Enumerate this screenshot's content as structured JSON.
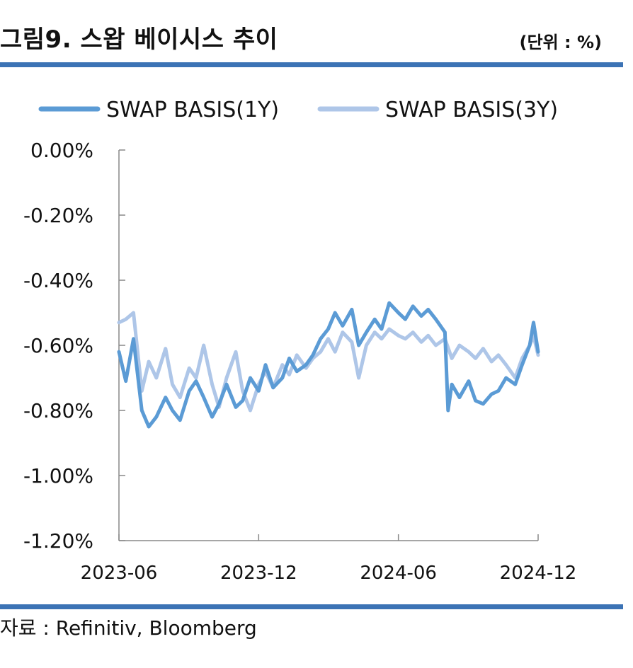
{
  "header": {
    "title": "그림9. 스왑 베이시스 추이",
    "unit": "(단위 : %)"
  },
  "footer": {
    "source": "자료 : Refinitiv, Bloomberg"
  },
  "chart_data": {
    "type": "line",
    "title": "그림9. 스왑 베이시스 추이",
    "xlabel": "",
    "ylabel": "",
    "ylim": [
      -1.2,
      0.0
    ],
    "y_ticks": [
      0.0,
      -0.2,
      -0.4,
      -0.6,
      -0.8,
      -1.0,
      -1.2
    ],
    "y_tick_labels": [
      "0.00%",
      "-0.20%",
      "-0.40%",
      "-0.60%",
      "-0.80%",
      "-1.00%",
      "-1.20%"
    ],
    "x_ticks": [
      "2023-06",
      "2023-12",
      "2024-06",
      "2024-12"
    ],
    "xlim": [
      "2023-06",
      "2024-12"
    ],
    "grid": false,
    "legend": "top",
    "series": [
      {
        "name": "SWAP BASIS(1Y)",
        "color": "#5b9bd5",
        "points": [
          [
            "2023-06-01",
            -0.62
          ],
          [
            "2023-06-10",
            -0.71
          ],
          [
            "2023-06-20",
            -0.58
          ],
          [
            "2023-07-01",
            -0.8
          ],
          [
            "2023-07-10",
            -0.85
          ],
          [
            "2023-07-20",
            -0.82
          ],
          [
            "2023-08-01",
            -0.76
          ],
          [
            "2023-08-10",
            -0.8
          ],
          [
            "2023-08-20",
            -0.83
          ],
          [
            "2023-09-01",
            -0.74
          ],
          [
            "2023-09-10",
            -0.71
          ],
          [
            "2023-09-20",
            -0.76
          ],
          [
            "2023-10-01",
            -0.82
          ],
          [
            "2023-10-10",
            -0.78
          ],
          [
            "2023-10-20",
            -0.72
          ],
          [
            "2023-11-01",
            -0.79
          ],
          [
            "2023-11-10",
            -0.77
          ],
          [
            "2023-11-20",
            -0.7
          ],
          [
            "2023-12-01",
            -0.74
          ],
          [
            "2023-12-10",
            -0.66
          ],
          [
            "2023-12-20",
            -0.73
          ],
          [
            "2024-01-01",
            -0.7
          ],
          [
            "2024-01-10",
            -0.64
          ],
          [
            "2024-01-20",
            -0.68
          ],
          [
            "2024-02-01",
            -0.66
          ],
          [
            "2024-02-10",
            -0.63
          ],
          [
            "2024-02-20",
            -0.58
          ],
          [
            "2024-03-01",
            -0.55
          ],
          [
            "2024-03-10",
            -0.5
          ],
          [
            "2024-03-20",
            -0.54
          ],
          [
            "2024-04-01",
            -0.49
          ],
          [
            "2024-04-10",
            -0.6
          ],
          [
            "2024-04-20",
            -0.56
          ],
          [
            "2024-05-01",
            -0.52
          ],
          [
            "2024-05-10",
            -0.55
          ],
          [
            "2024-05-20",
            -0.47
          ],
          [
            "2024-06-01",
            -0.5
          ],
          [
            "2024-06-10",
            -0.52
          ],
          [
            "2024-06-20",
            -0.48
          ],
          [
            "2024-07-01",
            -0.51
          ],
          [
            "2024-07-10",
            -0.49
          ],
          [
            "2024-07-20",
            -0.52
          ],
          [
            "2024-08-01",
            -0.56
          ],
          [
            "2024-08-05",
            -0.8
          ],
          [
            "2024-08-10",
            -0.72
          ],
          [
            "2024-08-20",
            -0.76
          ],
          [
            "2024-09-01",
            -0.71
          ],
          [
            "2024-09-10",
            -0.77
          ],
          [
            "2024-09-20",
            -0.78
          ],
          [
            "2024-10-01",
            -0.75
          ],
          [
            "2024-10-10",
            -0.74
          ],
          [
            "2024-10-20",
            -0.7
          ],
          [
            "2024-11-01",
            -0.72
          ],
          [
            "2024-11-10",
            -0.66
          ],
          [
            "2024-11-20",
            -0.6
          ],
          [
            "2024-11-25",
            -0.53
          ],
          [
            "2024-12-01",
            -0.62
          ]
        ]
      },
      {
        "name": "SWAP BASIS(3Y)",
        "color": "#aec6e8",
        "points": [
          [
            "2023-06-01",
            -0.53
          ],
          [
            "2023-06-10",
            -0.52
          ],
          [
            "2023-06-20",
            -0.5
          ],
          [
            "2023-07-01",
            -0.74
          ],
          [
            "2023-07-10",
            -0.65
          ],
          [
            "2023-07-20",
            -0.7
          ],
          [
            "2023-08-01",
            -0.61
          ],
          [
            "2023-08-10",
            -0.72
          ],
          [
            "2023-08-20",
            -0.76
          ],
          [
            "2023-09-01",
            -0.67
          ],
          [
            "2023-09-10",
            -0.7
          ],
          [
            "2023-09-20",
            -0.6
          ],
          [
            "2023-10-01",
            -0.72
          ],
          [
            "2023-10-10",
            -0.79
          ],
          [
            "2023-10-20",
            -0.7
          ],
          [
            "2023-11-01",
            -0.62
          ],
          [
            "2023-11-10",
            -0.74
          ],
          [
            "2023-11-20",
            -0.8
          ],
          [
            "2023-12-01",
            -0.72
          ],
          [
            "2023-12-10",
            -0.68
          ],
          [
            "2023-12-20",
            -0.73
          ],
          [
            "2024-01-01",
            -0.66
          ],
          [
            "2024-01-10",
            -0.69
          ],
          [
            "2024-01-20",
            -0.63
          ],
          [
            "2024-02-01",
            -0.67
          ],
          [
            "2024-02-10",
            -0.64
          ],
          [
            "2024-02-20",
            -0.62
          ],
          [
            "2024-03-01",
            -0.58
          ],
          [
            "2024-03-10",
            -0.62
          ],
          [
            "2024-03-20",
            -0.56
          ],
          [
            "2024-04-01",
            -0.59
          ],
          [
            "2024-04-10",
            -0.7
          ],
          [
            "2024-04-20",
            -0.6
          ],
          [
            "2024-05-01",
            -0.56
          ],
          [
            "2024-05-10",
            -0.58
          ],
          [
            "2024-05-20",
            -0.55
          ],
          [
            "2024-06-01",
            -0.57
          ],
          [
            "2024-06-10",
            -0.58
          ],
          [
            "2024-06-20",
            -0.56
          ],
          [
            "2024-07-01",
            -0.59
          ],
          [
            "2024-07-10",
            -0.57
          ],
          [
            "2024-07-20",
            -0.6
          ],
          [
            "2024-08-01",
            -0.58
          ],
          [
            "2024-08-10",
            -0.64
          ],
          [
            "2024-08-20",
            -0.6
          ],
          [
            "2024-09-01",
            -0.62
          ],
          [
            "2024-09-10",
            -0.64
          ],
          [
            "2024-09-20",
            -0.61
          ],
          [
            "2024-10-01",
            -0.65
          ],
          [
            "2024-10-10",
            -0.63
          ],
          [
            "2024-10-20",
            -0.66
          ],
          [
            "2024-11-01",
            -0.7
          ],
          [
            "2024-11-10",
            -0.64
          ],
          [
            "2024-11-20",
            -0.6
          ],
          [
            "2024-11-25",
            -0.57
          ],
          [
            "2024-12-01",
            -0.63
          ]
        ]
      }
    ]
  }
}
